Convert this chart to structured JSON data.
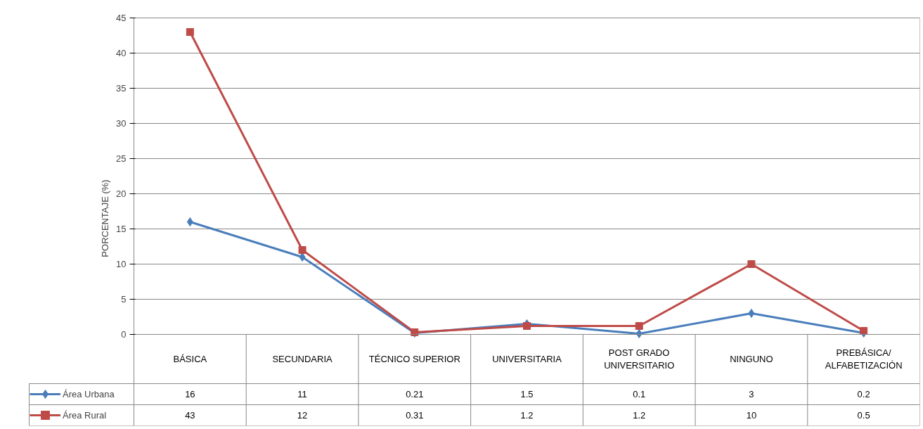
{
  "chart_data": {
    "type": "line",
    "ylabel": "PORCENTAJE (%)",
    "categories": [
      "BÁSICA",
      "SECUNDARIA",
      "TÉCNICO SUPERIOR",
      "UNIVERSITARIA",
      "POST GRADO UNIVERSITARIO",
      "NINGUNO",
      "PREBÁSICA/ ALFABETIZACIÓN"
    ],
    "series": [
      {
        "name": "Área Urbana",
        "color": "#4a7ebb",
        "marker": "diamond",
        "values": [
          16,
          11,
          0.21,
          1.5,
          0.1,
          3,
          0.2
        ]
      },
      {
        "name": "Área Rural",
        "color": "#be4b48",
        "marker": "square",
        "values": [
          43,
          12,
          0.31,
          1.2,
          1.2,
          10,
          0.5
        ]
      }
    ],
    "ylim": [
      0,
      45
    ],
    "yticks": [
      0,
      5,
      10,
      15,
      20,
      25,
      30,
      35,
      40,
      45
    ],
    "grid": "y",
    "legend": "bottom",
    "data_labels": true
  }
}
